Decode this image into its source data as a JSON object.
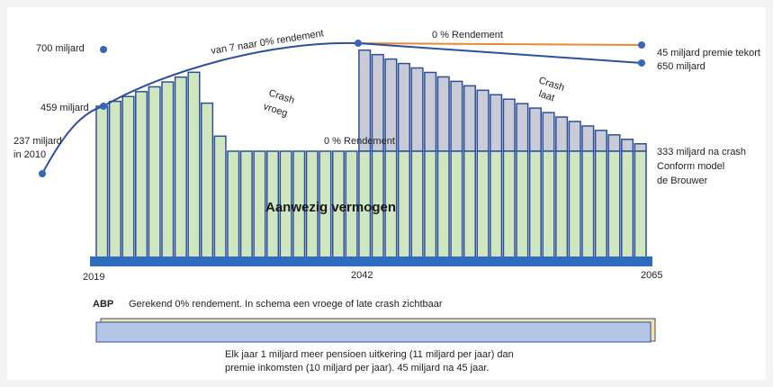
{
  "diagram": {
    "left_labels": [
      "700 miljard",
      "459 miljard",
      "237 miljard",
      "in 2010"
    ],
    "curve_label": "van 7 naar 0% rendement",
    "top_label": "0 % Rendement",
    "right_labels": [
      "45 miljard premie tekort",
      "650 miljard",
      "333 miljard na crash",
      "Conform model",
      "de Brouwer"
    ],
    "crash_early": [
      "Crash",
      "vroeg"
    ],
    "crash_late": [
      "Crash",
      "laat"
    ],
    "mid_label": "0 % Rendement",
    "center_label": "Aanwezig vermogen",
    "years": [
      "2019",
      "2042",
      "2065"
    ],
    "footer": {
      "org": "ABP",
      "note": "Gerekend 0% rendement. In schema een vroege of late crash zichtbaar",
      "lines": [
        "Elk jaar 1 miljard meer pensioen uitkering (11 miljard per jaar) dan",
        "premie inkomsten (10 miljard per jaar). 45 miljard na 45 jaar."
      ]
    }
  }
}
